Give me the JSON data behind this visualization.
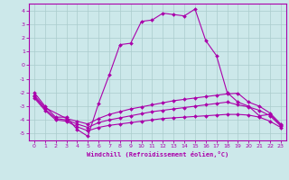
{
  "xlabel": "Windchill (Refroidissement éolien,°C)",
  "xlim": [
    -0.5,
    23.5
  ],
  "ylim": [
    -5.5,
    4.5
  ],
  "yticks": [
    -5,
    -4,
    -3,
    -2,
    -1,
    0,
    1,
    2,
    3,
    4
  ],
  "xticks": [
    0,
    1,
    2,
    3,
    4,
    5,
    6,
    7,
    8,
    9,
    10,
    11,
    12,
    13,
    14,
    15,
    16,
    17,
    18,
    19,
    20,
    21,
    22,
    23
  ],
  "bg_color": "#cce8ea",
  "line_color": "#aa00aa",
  "grid_color": "#aacccc",
  "line1_x": [
    0,
    1,
    2,
    3,
    4,
    5,
    6,
    7,
    8,
    9,
    10,
    11,
    12,
    13,
    14,
    15,
    16,
    17,
    18,
    19,
    20,
    21,
    22,
    23
  ],
  "line1_y": [
    -2.0,
    -3.0,
    -3.8,
    -3.8,
    -4.7,
    -5.2,
    -2.8,
    -0.7,
    1.5,
    1.6,
    3.2,
    3.3,
    3.8,
    3.7,
    3.6,
    4.1,
    1.8,
    0.7,
    -2.0,
    -2.7,
    -3.0,
    -3.7,
    -3.6,
    -4.4
  ],
  "line2_x": [
    0,
    1,
    3,
    4,
    5,
    6,
    7,
    8,
    9,
    10,
    11,
    12,
    13,
    14,
    15,
    16,
    17,
    18,
    19,
    20,
    21,
    22,
    23
  ],
  "line2_y": [
    -2.2,
    -3.1,
    -3.9,
    -4.1,
    -4.3,
    -3.9,
    -3.6,
    -3.4,
    -3.2,
    -3.05,
    -2.9,
    -2.75,
    -2.6,
    -2.5,
    -2.4,
    -2.3,
    -2.2,
    -2.1,
    -2.05,
    -2.7,
    -3.0,
    -3.5,
    -4.3
  ],
  "line3_x": [
    0,
    1,
    2,
    3,
    4,
    5,
    6,
    7,
    8,
    9,
    10,
    11,
    12,
    13,
    14,
    15,
    16,
    17,
    18,
    19,
    20,
    21,
    22,
    23
  ],
  "line3_y": [
    -2.3,
    -3.2,
    -3.9,
    -4.0,
    -4.3,
    -4.55,
    -4.2,
    -4.0,
    -3.85,
    -3.7,
    -3.55,
    -3.4,
    -3.3,
    -3.2,
    -3.1,
    -3.0,
    -2.9,
    -2.8,
    -2.7,
    -2.9,
    -3.05,
    -3.3,
    -3.7,
    -4.45
  ],
  "line4_x": [
    0,
    1,
    2,
    3,
    4,
    5,
    6,
    7,
    8,
    9,
    10,
    11,
    12,
    13,
    14,
    15,
    16,
    17,
    18,
    19,
    20,
    21,
    22,
    23
  ],
  "line4_y": [
    -2.4,
    -3.3,
    -4.0,
    -4.1,
    -4.5,
    -4.8,
    -4.55,
    -4.4,
    -4.3,
    -4.2,
    -4.1,
    -4.0,
    -3.9,
    -3.85,
    -3.8,
    -3.75,
    -3.7,
    -3.65,
    -3.6,
    -3.6,
    -3.65,
    -3.8,
    -4.1,
    -4.55
  ]
}
